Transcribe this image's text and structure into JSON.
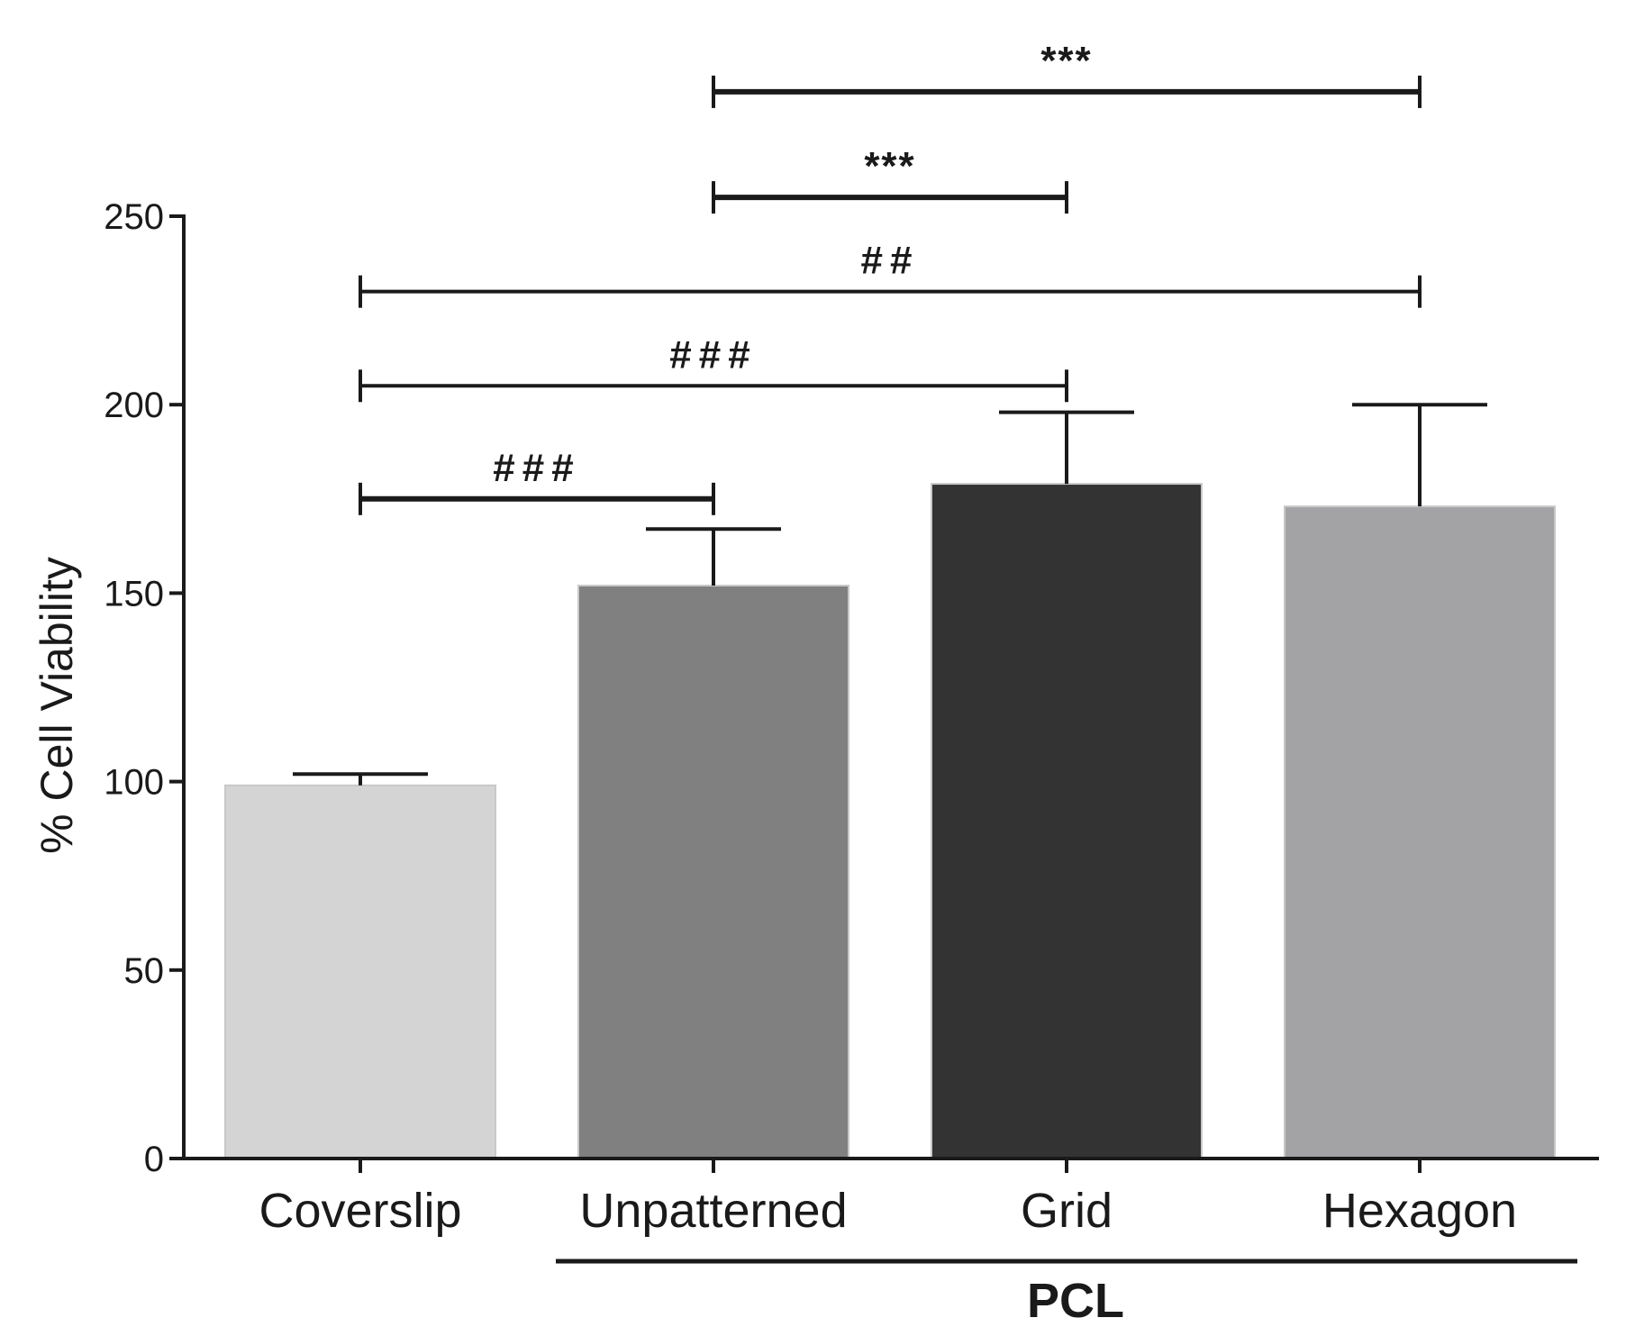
{
  "chart_data": {
    "type": "bar",
    "categories": [
      "Coverslip",
      "Unpatterned",
      "Grid",
      "Hexagon"
    ],
    "values": [
      99,
      152,
      179,
      173
    ],
    "errors": [
      3,
      15,
      19,
      27
    ],
    "colors": [
      "#d4d4d4",
      "#808080",
      "#333333",
      "#a3a3a6"
    ],
    "ylabel": "% Cell Viability",
    "ylim": [
      0,
      250
    ],
    "yticks": [
      0,
      50,
      100,
      150,
      200,
      250
    ],
    "group": {
      "label": "PCL",
      "from": 1,
      "to": 3
    },
    "significance": [
      {
        "from": 0,
        "to": 1,
        "label": "###",
        "y": 175,
        "heavy": true
      },
      {
        "from": 0,
        "to": 2,
        "label": "###",
        "y": 205,
        "heavy": false
      },
      {
        "from": 0,
        "to": 3,
        "label": "##",
        "y": 230,
        "heavy": false
      },
      {
        "from": 1,
        "to": 2,
        "label": "***",
        "y": 255,
        "heavy": true
      },
      {
        "from": 1,
        "to": 3,
        "label": "***",
        "y": 283,
        "heavy": true
      }
    ]
  }
}
